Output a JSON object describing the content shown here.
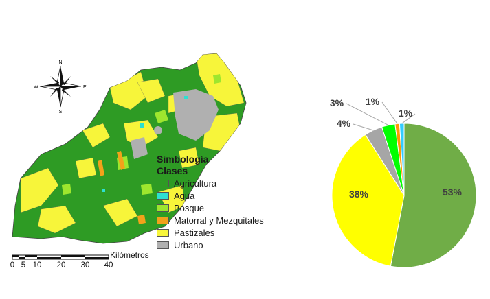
{
  "map": {
    "compass": {
      "n": "N",
      "s": "S",
      "e": "E",
      "w": "W"
    },
    "legend": {
      "title": "Simbología",
      "subtitle": "Clases",
      "items": [
        {
          "label": "Agricultura",
          "color": "#2e9b24"
        },
        {
          "label": "Agua",
          "color": "#2de0d0"
        },
        {
          "label": "Bosque",
          "color": "#9ee62e"
        },
        {
          "label": "Matorral y Mezquitales",
          "color": "#f2a21a"
        },
        {
          "label": "Pastizales",
          "color": "#f7f53a"
        },
        {
          "label": "Urbano",
          "color": "#b0b0b0"
        }
      ]
    },
    "scale_bar": {
      "ticks": [
        "0",
        "5",
        "10",
        "20",
        "30",
        "40"
      ],
      "unit": "Kilómetros"
    }
  },
  "chart_data": {
    "type": "pie",
    "slices": [
      {
        "label": "53%",
        "value": 53,
        "color": "#70ad47"
      },
      {
        "label": "38%",
        "value": 38,
        "color": "#ffff00"
      },
      {
        "label": "4%",
        "value": 4,
        "color": "#a6a6a6"
      },
      {
        "label": "3%",
        "value": 3,
        "color": "#00ff00"
      },
      {
        "label": "1%",
        "value": 1,
        "color": "#ff9900"
      },
      {
        "label": "1%",
        "value": 1,
        "color": "#33ccff"
      }
    ]
  }
}
